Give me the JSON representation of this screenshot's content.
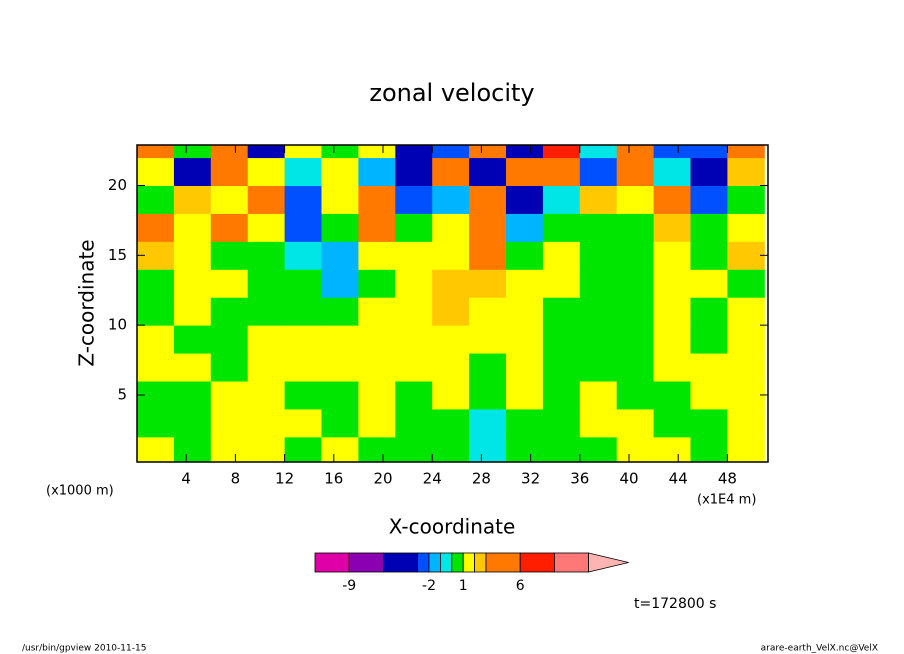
{
  "chart_data": {
    "type": "heatmap",
    "title": "zonal velocity",
    "x_label": "X-coordinate",
    "y_label": "Z-coordinate",
    "x_unit": "(x1E4 m)",
    "y_unit": "(x1000 m)",
    "time_label": "t=172800 s",
    "footer_left": "/usr/bin/gpview  2010-11-15",
    "footer_right": "arare-earth_VelX.nc@VelX",
    "xlim": [
      0,
      51.3
    ],
    "ylim": [
      0.2,
      22.9
    ],
    "xticks": [
      4,
      8,
      12,
      16,
      20,
      24,
      28,
      32,
      36,
      40,
      44,
      48
    ],
    "yticks": [
      5,
      10,
      15,
      20
    ],
    "x": [
      1.5,
      4.5,
      7.5,
      10.5,
      13.5,
      16.5,
      19.5,
      22.5,
      25.5,
      28.5,
      31.5,
      34.5,
      37.5,
      40.5,
      43.5,
      46.5,
      49.5
    ],
    "y": [
      1,
      3,
      5,
      7,
      9,
      11,
      13,
      15,
      17,
      19,
      21,
      23
    ],
    "values": [
      [
        1.5,
        0.5,
        1.5,
        1.5,
        0.5,
        1.5,
        0.5,
        0.5,
        0.5,
        -0.5,
        0.5,
        0.5,
        0.5,
        1.5,
        1.5,
        0.5,
        1.5
      ],
      [
        0.5,
        0.5,
        1.5,
        1.5,
        1.5,
        0.5,
        1.5,
        0.5,
        0.5,
        -0.5,
        0.5,
        0.5,
        1.5,
        1.5,
        0.5,
        0.5,
        1.5
      ],
      [
        0.5,
        0.5,
        1.5,
        1.5,
        0.5,
        0.5,
        1.5,
        0.5,
        1.5,
        0.5,
        1.5,
        0.5,
        1.5,
        0.5,
        0.5,
        1.5,
        1.5
      ],
      [
        1.5,
        1.5,
        0.5,
        1.5,
        1.5,
        1.5,
        1.5,
        1.5,
        1.5,
        0.5,
        1.5,
        0.5,
        0.5,
        0.5,
        1.5,
        1.5,
        1.5
      ],
      [
        1.5,
        0.5,
        0.5,
        1.5,
        1.5,
        1.5,
        1.5,
        1.5,
        1.5,
        1.5,
        1.5,
        0.5,
        0.5,
        0.5,
        1.5,
        0.5,
        1.5
      ],
      [
        0.5,
        1.5,
        0.5,
        0.5,
        0.5,
        0.5,
        1.5,
        1.5,
        2.5,
        1.5,
        1.5,
        0.5,
        0.5,
        0.5,
        1.5,
        0.5,
        1.5
      ],
      [
        0.5,
        1.5,
        1.5,
        0.5,
        0.5,
        -1.5,
        0.5,
        1.5,
        2.5,
        2.5,
        1.5,
        1.5,
        0.5,
        0.5,
        1.5,
        1.5,
        0.5
      ],
      [
        2.5,
        1.5,
        0.5,
        0.5,
        -0.5,
        -1.5,
        1.5,
        1.5,
        1.5,
        3.5,
        0.5,
        1.5,
        0.5,
        0.5,
        1.5,
        0.5,
        2.5
      ],
      [
        3.5,
        1.5,
        5,
        1.5,
        -2.5,
        0.5,
        5,
        0.5,
        1.5,
        5,
        -1.5,
        0.5,
        0.5,
        0.5,
        2.5,
        0.5,
        1.5
      ],
      [
        0.5,
        2.5,
        1.5,
        5,
        -2.5,
        1.5,
        3.5,
        -2.5,
        -1.5,
        5,
        -4,
        -0.5,
        2.5,
        1.5,
        5,
        -3,
        0.5
      ],
      [
        1.5,
        -4,
        3.5,
        1.5,
        -0.5,
        1.5,
        -1.5,
        -4,
        5,
        -4,
        5,
        5,
        -2.5,
        3.5,
        -0.5,
        -4,
        2.5
      ],
      [
        5,
        0.5,
        5,
        -4,
        1.5,
        0.5,
        1.5,
        -4,
        -3,
        3.5,
        -4,
        7,
        -0.5,
        5,
        -2.5,
        -3,
        5
      ]
    ],
    "colorbar": {
      "levels": [
        -12,
        -9,
        -6,
        -3,
        -2,
        -1,
        0,
        1,
        2,
        3,
        6,
        9,
        12
      ],
      "colors": [
        "#e000a8",
        "#8c00b4",
        "#0000b4",
        "#0050ff",
        "#00b4ff",
        "#00e6e6",
        "#00e600",
        "#ffff00",
        "#ffc800",
        "#ff7800",
        "#ff1e00",
        "#ff7878",
        "#ffb4b4"
      ],
      "ticks": [
        -9,
        -2,
        1,
        6
      ]
    }
  }
}
